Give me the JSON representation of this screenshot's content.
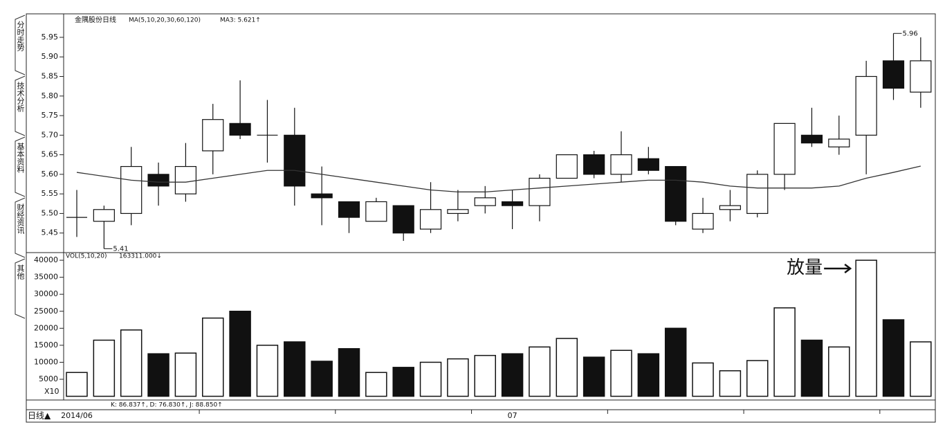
{
  "ui": {
    "tabs": [
      "分时走势",
      "技术分析",
      "基本资料",
      "财经资讯",
      "其他"
    ],
    "period": "日线▲",
    "indicator_line": "K: 86.837↑, D: 76.830↑, J: 88.850↑"
  },
  "chart_data": [
    {
      "type": "candlestick",
      "title": "金隅股份日线",
      "indicator": "MA(5,10,20,30,60,120)",
      "indicator_value": "MA3: 5.621↑",
      "categories": [
        "2014/06",
        null,
        null,
        null,
        null,
        null,
        null,
        null,
        null,
        null,
        null,
        null,
        null,
        null,
        null,
        null,
        "07",
        null,
        null,
        null,
        null,
        null,
        null,
        null,
        null,
        null,
        null,
        null,
        null,
        null,
        null,
        null
      ],
      "open": [
        5.49,
        5.48,
        5.5,
        5.6,
        5.55,
        5.66,
        5.73,
        5.7,
        5.7,
        5.55,
        5.53,
        5.48,
        5.52,
        5.46,
        5.5,
        5.52,
        5.53,
        5.52,
        5.59,
        5.65,
        5.6,
        5.64,
        5.62,
        5.46,
        5.51,
        5.5,
        5.6,
        5.7,
        5.67,
        5.7,
        5.89,
        5.81
      ],
      "high": [
        5.56,
        5.52,
        5.67,
        5.63,
        5.68,
        5.78,
        5.84,
        5.79,
        5.77,
        5.62,
        5.53,
        5.54,
        5.52,
        5.58,
        5.56,
        5.57,
        5.56,
        5.6,
        5.65,
        5.66,
        5.71,
        5.67,
        5.62,
        5.54,
        5.56,
        5.61,
        5.73,
        5.77,
        5.75,
        5.89,
        5.96,
        5.95
      ],
      "low": [
        5.44,
        5.41,
        5.47,
        5.52,
        5.53,
        5.6,
        5.69,
        5.63,
        5.52,
        5.47,
        5.45,
        5.48,
        5.43,
        5.45,
        5.48,
        5.5,
        5.46,
        5.48,
        5.59,
        5.59,
        5.58,
        5.6,
        5.47,
        5.45,
        5.48,
        5.49,
        5.56,
        5.67,
        5.65,
        5.6,
        5.79,
        5.77
      ],
      "close": [
        5.49,
        5.51,
        5.62,
        5.57,
        5.62,
        5.74,
        5.7,
        5.7,
        5.57,
        5.54,
        5.49,
        5.53,
        5.45,
        5.51,
        5.51,
        5.54,
        5.52,
        5.59,
        5.65,
        5.6,
        5.65,
        5.61,
        5.48,
        5.5,
        5.52,
        5.6,
        5.73,
        5.68,
        5.69,
        5.85,
        5.82,
        5.89
      ],
      "ma": {
        "color": "#333333",
        "values": [
          5.605,
          5.595,
          5.585,
          5.58,
          5.58,
          5.59,
          5.6,
          5.61,
          5.61,
          5.6,
          5.59,
          5.58,
          5.57,
          5.56,
          5.555,
          5.555,
          5.56,
          5.565,
          5.57,
          5.575,
          5.58,
          5.585,
          5.585,
          5.58,
          5.57,
          5.565,
          5.565,
          5.565,
          5.57,
          5.59,
          5.605,
          5.621
        ]
      },
      "up_color": "#ffffff",
      "down_color": "#111111",
      "ylim": [
        5.4,
        6.01
      ],
      "yticks": [
        {
          "value": 5.45,
          "label": "5.45"
        },
        {
          "value": 5.5,
          "label": "5.50"
        },
        {
          "value": 5.55,
          "label": "5.55"
        },
        {
          "value": 5.6,
          "label": "5.60"
        },
        {
          "value": 5.65,
          "label": "5.65"
        },
        {
          "value": 5.7,
          "label": "5.70"
        },
        {
          "value": 5.75,
          "label": "5.75"
        },
        {
          "value": 5.8,
          "label": "5.80"
        },
        {
          "value": 5.85,
          "label": "5.85"
        },
        {
          "value": 5.9,
          "label": "5.90"
        },
        {
          "value": 5.95,
          "label": "5.95"
        }
      ]
    },
    {
      "type": "bar",
      "title": "VOL(5,10,20)",
      "title_value": "163311.000↓",
      "unit_label": "X10",
      "annotation": "放量",
      "values": [
        7000,
        16500,
        19500,
        12500,
        12700,
        23000,
        25000,
        15000,
        16000,
        10300,
        14000,
        7000,
        8500,
        10000,
        11000,
        12000,
        12500,
        14500,
        17000,
        11500,
        13500,
        12500,
        20000,
        9800,
        7500,
        10500,
        26000,
        16500,
        14500,
        40000,
        22500,
        16000
      ],
      "ylim": [
        0,
        42250
      ],
      "yticks": [
        5000,
        10000,
        15000,
        20000,
        25000,
        30000,
        35000,
        40000
      ]
    }
  ]
}
